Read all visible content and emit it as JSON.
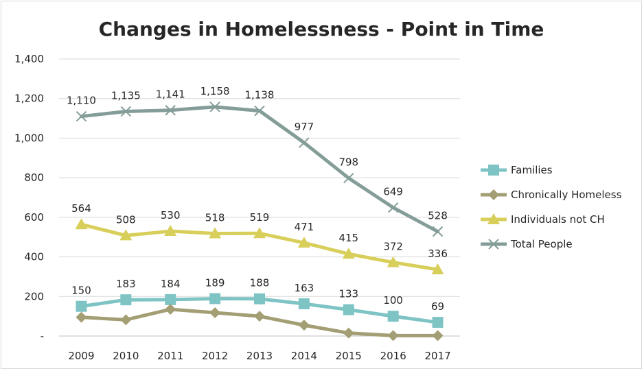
{
  "chart_data": {
    "type": "line",
    "title": "Changes in Homelessness - Point in Time",
    "xlabel": "",
    "ylabel": "",
    "categories": [
      "2009",
      "2010",
      "2011",
      "2012",
      "2013",
      "2014",
      "2015",
      "2016",
      "2017"
    ],
    "ylim": [
      0,
      1400
    ],
    "yticks": [
      {
        "value": 0,
        "label": "-"
      },
      {
        "value": 200,
        "label": "200"
      },
      {
        "value": 400,
        "label": "400"
      },
      {
        "value": 600,
        "label": "600"
      },
      {
        "value": 800,
        "label": "800"
      },
      {
        "value": 1000,
        "label": "1,000"
      },
      {
        "value": 1200,
        "label": "1,200"
      },
      {
        "value": 1400,
        "label": "1,400"
      }
    ],
    "grid": true,
    "legend": "right",
    "series": [
      {
        "name": "Families",
        "color": "#7fc4c5",
        "marker": "square",
        "values": [
          150,
          183,
          184,
          189,
          188,
          163,
          133,
          100,
          69
        ],
        "labels": [
          "150",
          "183",
          "184",
          "189",
          "188",
          "163",
          "133",
          "100",
          "69"
        ]
      },
      {
        "name": "Chronically Homeless",
        "color": "#a39e74",
        "marker": "diamond",
        "values": [
          95,
          82,
          135,
          118,
          100,
          55,
          15,
          2,
          2
        ],
        "labels": []
      },
      {
        "name": "Individuals not CH",
        "color": "#d8cf5a",
        "marker": "triangle",
        "values": [
          564,
          508,
          530,
          518,
          519,
          471,
          415,
          372,
          336
        ],
        "labels": [
          "564",
          "508",
          "530",
          "518",
          "519",
          "471",
          "415",
          "372",
          "336"
        ]
      },
      {
        "name": "Total People",
        "color": "#849d98",
        "marker": "x",
        "values": [
          1110,
          1135,
          1141,
          1158,
          1138,
          977,
          798,
          649,
          528
        ],
        "labels": [
          "1,110",
          "1,135",
          "1,141",
          "1,158",
          "1,138",
          "977",
          "798",
          "649",
          "528"
        ]
      }
    ]
  }
}
